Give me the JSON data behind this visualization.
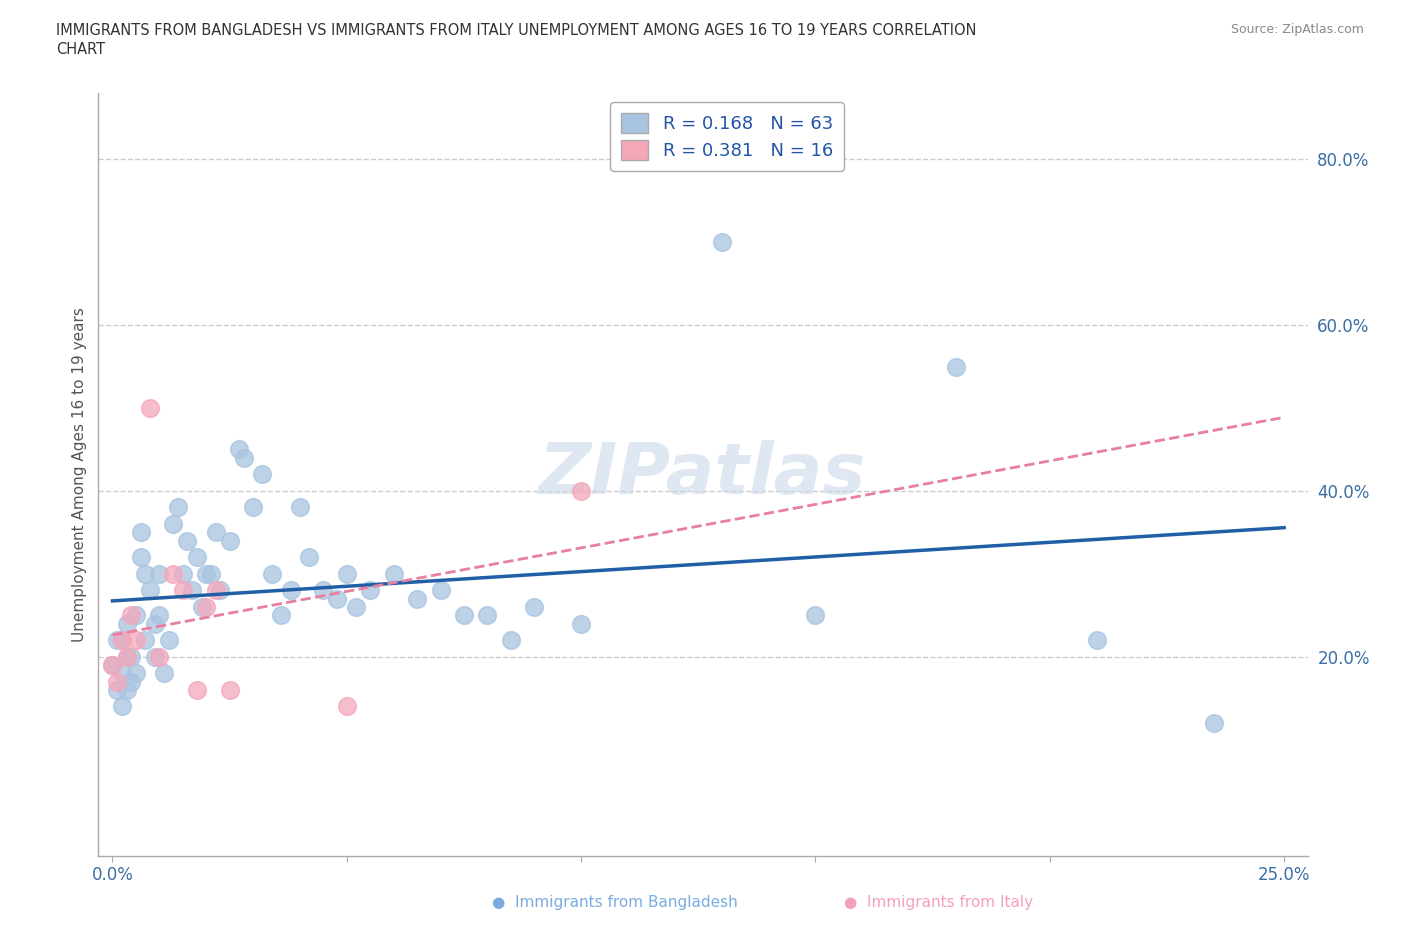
{
  "title_line1": "IMMIGRANTS FROM BANGLADESH VS IMMIGRANTS FROM ITALY UNEMPLOYMENT AMONG AGES 16 TO 19 YEARS CORRELATION",
  "title_line2": "CHART",
  "source": "Source: ZipAtlas.com",
  "ylabel": "Unemployment Among Ages 16 to 19 years",
  "xlim": [
    -0.003,
    0.255
  ],
  "ylim": [
    -0.04,
    0.88
  ],
  "xticks": [
    0.0,
    0.05,
    0.1,
    0.15,
    0.2,
    0.25
  ],
  "xticklabels": [
    "0.0%",
    "",
    "",
    "",
    "",
    "25.0%"
  ],
  "yticks_right": [
    0.2,
    0.4,
    0.6,
    0.8
  ],
  "ytick_right_labels": [
    "20.0%",
    "40.0%",
    "60.0%",
    "80.0%"
  ],
  "bangladesh_color": "#a8c4e0",
  "italy_color": "#f4a7b9",
  "bangladesh_line_color": "#1f5fa6",
  "italy_line_color": "#e87fa0",
  "R_bangladesh": 0.168,
  "N_bangladesh": 63,
  "R_italy": 0.381,
  "N_italy": 16,
  "watermark": "ZIPatlas",
  "bangladesh_x": [
    0.0,
    0.001,
    0.001,
    0.002,
    0.002,
    0.002,
    0.003,
    0.003,
    0.003,
    0.004,
    0.004,
    0.005,
    0.005,
    0.006,
    0.006,
    0.007,
    0.007,
    0.008,
    0.009,
    0.009,
    0.01,
    0.01,
    0.011,
    0.012,
    0.013,
    0.014,
    0.015,
    0.016,
    0.017,
    0.018,
    0.019,
    0.02,
    0.021,
    0.022,
    0.023,
    0.025,
    0.027,
    0.028,
    0.03,
    0.032,
    0.034,
    0.036,
    0.038,
    0.04,
    0.042,
    0.045,
    0.048,
    0.05,
    0.052,
    0.055,
    0.06,
    0.065,
    0.07,
    0.075,
    0.08,
    0.085,
    0.09,
    0.1,
    0.13,
    0.15,
    0.18,
    0.21,
    0.235
  ],
  "bangladesh_y": [
    0.19,
    0.22,
    0.16,
    0.14,
    0.18,
    0.22,
    0.2,
    0.24,
    0.16,
    0.2,
    0.17,
    0.18,
    0.25,
    0.35,
    0.32,
    0.3,
    0.22,
    0.28,
    0.24,
    0.2,
    0.25,
    0.3,
    0.18,
    0.22,
    0.36,
    0.38,
    0.3,
    0.34,
    0.28,
    0.32,
    0.26,
    0.3,
    0.3,
    0.35,
    0.28,
    0.34,
    0.45,
    0.44,
    0.38,
    0.42,
    0.3,
    0.25,
    0.28,
    0.38,
    0.32,
    0.28,
    0.27,
    0.3,
    0.26,
    0.28,
    0.3,
    0.27,
    0.28,
    0.25,
    0.25,
    0.22,
    0.26,
    0.24,
    0.7,
    0.25,
    0.55,
    0.22,
    0.12
  ],
  "italy_x": [
    0.0,
    0.001,
    0.002,
    0.003,
    0.004,
    0.005,
    0.008,
    0.01,
    0.013,
    0.015,
    0.018,
    0.02,
    0.022,
    0.025,
    0.05,
    0.1
  ],
  "italy_y": [
    0.19,
    0.17,
    0.22,
    0.2,
    0.25,
    0.22,
    0.5,
    0.2,
    0.3,
    0.28,
    0.16,
    0.26,
    0.28,
    0.16,
    0.14,
    0.4
  ]
}
